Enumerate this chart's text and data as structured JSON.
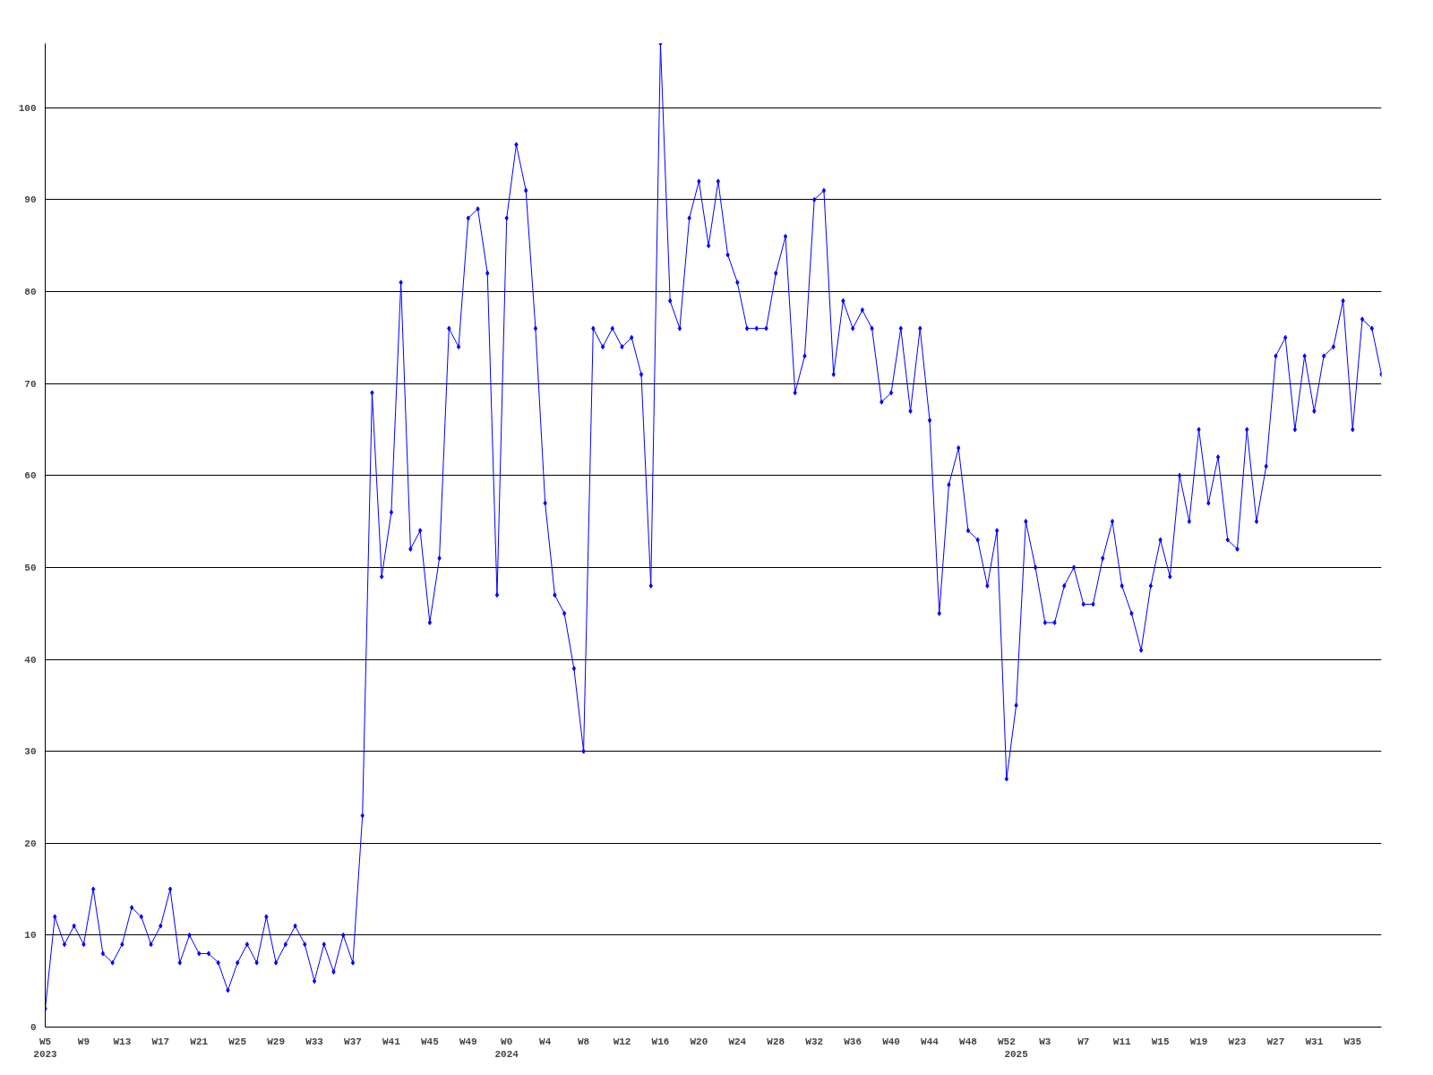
{
  "chart_data": {
    "type": "line",
    "categories": [
      "W5\n2023",
      null,
      null,
      null,
      "W9",
      null,
      null,
      null,
      "W13",
      null,
      null,
      null,
      "W17",
      null,
      null,
      null,
      "W21",
      null,
      null,
      null,
      "W25",
      null,
      null,
      null,
      "W29",
      null,
      null,
      null,
      "W33",
      null,
      null,
      null,
      "W37",
      null,
      null,
      null,
      "W41",
      null,
      null,
      null,
      "W45",
      null,
      null,
      null,
      "W49",
      null,
      null,
      null,
      "W0\n2024",
      null,
      null,
      null,
      "W4",
      null,
      null,
      null,
      "W8",
      null,
      null,
      null,
      "W12",
      null,
      null,
      null,
      "W16",
      null,
      null,
      null,
      "W20",
      null,
      null,
      null,
      "W24",
      null,
      null,
      null,
      "W28",
      null,
      null,
      null,
      "W32",
      null,
      null,
      null,
      "W36",
      null,
      null,
      null,
      "W40",
      null,
      null,
      null,
      "W44",
      null,
      null,
      null,
      "W48",
      null,
      null,
      null,
      "W52",
      "\n2025",
      null,
      null,
      "W3",
      null,
      null,
      null,
      "W7",
      null,
      null,
      null,
      "W11",
      null,
      null,
      null,
      "W15",
      null,
      null,
      null,
      "W19",
      null,
      null,
      null,
      "W23",
      null,
      null,
      null,
      "W27",
      null,
      null,
      null,
      "W31",
      null,
      null,
      null,
      "W35",
      null,
      null,
      null
    ],
    "series": [
      {
        "color": "#0000ff",
        "values": [
          2,
          12,
          9,
          11,
          9,
          15,
          8,
          7,
          9,
          13,
          12,
          9,
          11,
          15,
          7,
          10,
          8,
          8,
          7,
          4,
          7,
          9,
          7,
          12,
          7,
          9,
          11,
          9,
          5,
          9,
          6,
          10,
          7,
          23,
          69,
          49,
          56,
          81,
          52,
          54,
          44,
          51,
          76,
          74,
          88,
          89,
          82,
          47,
          88,
          96,
          91,
          76,
          57,
          47,
          45,
          39,
          30,
          76,
          74,
          76,
          74,
          75,
          71,
          48,
          107,
          79,
          76,
          88,
          92,
          85,
          92,
          84,
          81,
          76,
          76,
          76,
          82,
          86,
          69,
          73,
          90,
          91,
          71,
          79,
          76,
          78,
          76,
          68,
          69,
          76,
          67,
          76,
          66,
          45,
          59,
          63,
          54,
          53,
          48,
          54,
          27,
          35,
          55,
          50,
          44,
          44,
          48,
          50,
          46,
          46,
          51,
          55,
          48,
          45,
          41,
          48,
          53,
          49,
          60,
          55,
          65,
          57,
          62,
          53,
          52,
          65,
          55,
          61,
          73,
          75,
          65,
          73,
          67,
          73,
          74,
          79,
          65,
          77,
          76,
          71
        ]
      }
    ],
    "ylim": [
      0,
      107
    ],
    "yticks": [
      0,
      10,
      20,
      30,
      40,
      50,
      60,
      70,
      80,
      90,
      100
    ],
    "grid": "y",
    "marker": "diamond",
    "line_style": "solid"
  }
}
